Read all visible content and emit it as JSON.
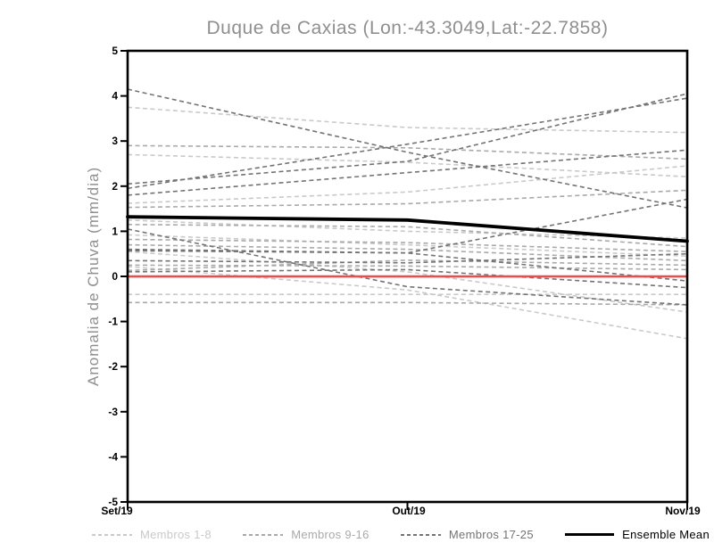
{
  "page": {
    "background": "#ffffff"
  },
  "chart_data": {
    "type": "line",
    "title": "Duque de Caxias (Lon:-43.3049,Lat:-22.7858)",
    "ylabel": "Anomalia de Chuva (mm/dia)",
    "xlabel": "",
    "x_categories": [
      "Set/19",
      "Out/19",
      "Nov/19"
    ],
    "ylim": [
      -5,
      5
    ],
    "ytick_labels": [
      "5",
      "4",
      "3",
      "2",
      "1",
      "0",
      "-1",
      "-2",
      "-3",
      "-4",
      "-5"
    ],
    "ytick_values": [
      5,
      4,
      3,
      2,
      1,
      0,
      -1,
      -2,
      -3,
      -4,
      -5
    ],
    "grid": false,
    "legend_position": "bottom",
    "title_color": "#8f8f8f",
    "axis_color": "#000000",
    "series": [
      {
        "name": "Membros 1-8",
        "color": "#c9c9c9",
        "style": "dashed",
        "members": [
          [
            3.75,
            3.3,
            3.19
          ],
          [
            2.7,
            2.53,
            2.21
          ],
          [
            1.62,
            1.87,
            2.45
          ],
          [
            1.25,
            1.0,
            0.85
          ],
          [
            0.92,
            0.7,
            0.45
          ],
          [
            0.55,
            0.1,
            -0.79
          ],
          [
            0.22,
            -0.3,
            -1.38
          ],
          [
            -0.4,
            -0.4,
            -0.4
          ]
        ]
      },
      {
        "name": "Membros 9-16",
        "color": "#a9a9a9",
        "style": "dashed",
        "members": [
          [
            2.9,
            2.85,
            2.6
          ],
          [
            1.53,
            1.61,
            1.91
          ],
          [
            1.15,
            1.1,
            0.66
          ],
          [
            0.82,
            0.75,
            0.55
          ],
          [
            0.7,
            0.6,
            0.35
          ],
          [
            0.25,
            0.23,
            0.15
          ],
          [
            0.13,
            0.36,
            0.25
          ],
          [
            -0.58,
            -0.58,
            -0.63
          ]
        ]
      },
      {
        "name": "Membros 17-25",
        "color": "#737373",
        "style": "dashed",
        "members": [
          [
            4.15,
            2.75,
            1.52
          ],
          [
            2.05,
            2.55,
            4.05
          ],
          [
            1.95,
            2.93,
            3.95
          ],
          [
            1.8,
            2.3,
            2.8
          ],
          [
            1.05,
            -0.23,
            -0.63
          ],
          [
            0.6,
            0.52,
            1.71
          ],
          [
            0.57,
            0.52,
            -0.1
          ],
          [
            0.35,
            0.3,
            0.5
          ],
          [
            0.1,
            0.15,
            -0.25
          ]
        ]
      }
    ],
    "zero_line": {
      "color": "#f04a4a",
      "values": [
        0,
        0,
        0
      ]
    },
    "ensemble_mean": {
      "name": "Ensemble Mean",
      "color": "#000000",
      "style": "solid",
      "values": [
        1.32,
        1.25,
        0.78
      ]
    },
    "legend": [
      {
        "label": "Membros 1-8",
        "color": "#c9c9c9",
        "style": "dashed"
      },
      {
        "label": "Membros 9-16",
        "color": "#a9a9a9",
        "style": "dashed"
      },
      {
        "label": "Membros 17-25",
        "color": "#737373",
        "style": "dashed"
      },
      {
        "label": "Ensemble Mean",
        "color": "#000000",
        "style": "solid"
      }
    ]
  }
}
